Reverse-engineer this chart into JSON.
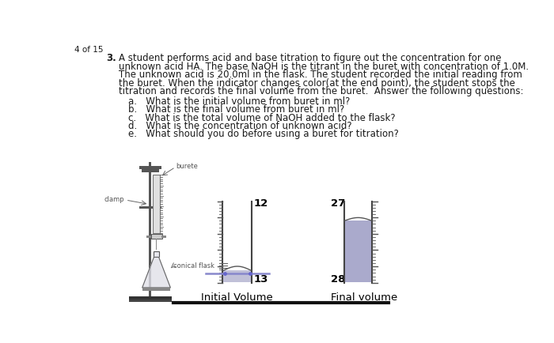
{
  "page_label": "4 of 15",
  "question_num": "3.",
  "paragraph_line1": "A student performs acid and base titration to figure out the concentration for one",
  "paragraph_line2": "unknown acid HA. The base NaOH is the titrant in the buret with concentration of 1.0M.",
  "paragraph_line3": "The unknown acid is 20.0ml in the flask. The student recorded the initial reading from",
  "paragraph_line4": "the buret. When the indicator changes color(at the end point), the student stops the",
  "paragraph_line5": "titration and records the final volume from the buret.  Answer the following questions:",
  "sub_a": "a.   What is the initial volume from buret in ml?",
  "sub_b": "b.   What is the final volume from buret in ml?",
  "sub_c": "c.   What is the total volume of NaOH added to the flask?",
  "sub_d": "d.   What is the concentration of unknown acid?",
  "sub_e": "e.   What should you do before using a buret for titration?",
  "initial_top_label": "12",
  "initial_bottom_label": "13",
  "final_top_label": "27",
  "final_bottom_label": "28",
  "initial_volume_text": "Initial Volume",
  "final_volume_text": "Final volume",
  "buret_label": "burete",
  "clamp_label": "clamp",
  "conical_flask_label": "conical flask",
  "bg_color": "#ffffff",
  "text_color": "#1a1a1a",
  "liquid_color_initial": "#c0c0d8",
  "liquid_color_final": "#aaaacc",
  "ref_line_color": "#8888cc",
  "stand_color": "#555555",
  "buret_wall_color": "#444444",
  "tick_color": "#555555"
}
